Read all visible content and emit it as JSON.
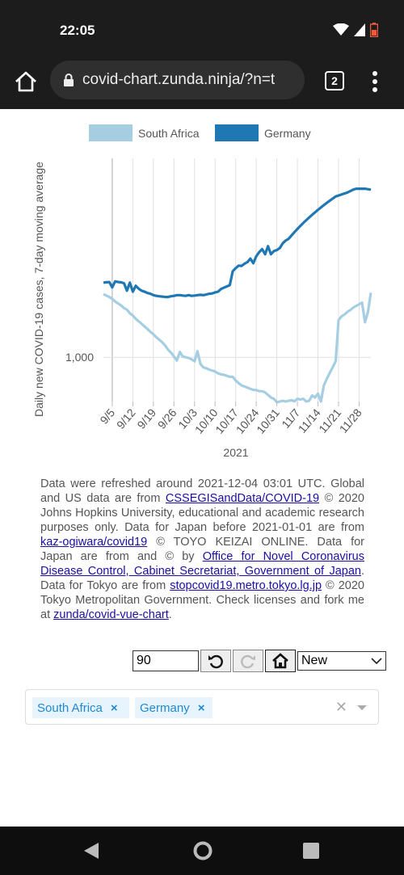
{
  "status_bar": {
    "time": "22:05"
  },
  "browser": {
    "url": "covid-chart.zunda.ninja/?n=t",
    "tab_count": "2"
  },
  "chart_data": {
    "type": "line",
    "ylabel": "Daily new COVID-19 cases, 7-day moving average",
    "xlabel": "2021",
    "y_scale": "log",
    "y_tick_labels": [
      {
        "value": 1000,
        "label": "1,000"
      }
    ],
    "ylim": [
      570,
      12500
    ],
    "x_tick_labels": [
      "9/5",
      "9/12",
      "9/19",
      "9/26",
      "10/3",
      "10/10",
      "10/17",
      "10/24",
      "10/31",
      "11/7",
      "11/14",
      "11/21",
      "11/28"
    ],
    "legend_position": "top",
    "grid": "vertical",
    "series": [
      {
        "name": "South Africa",
        "color": "#a6cee3",
        "x": [
          "9/2",
          "9/3",
          "9/4",
          "9/5",
          "9/6",
          "9/7",
          "9/8",
          "9/9",
          "9/10",
          "9/11",
          "9/12",
          "9/13",
          "9/14",
          "9/15",
          "9/16",
          "9/17",
          "9/18",
          "9/19",
          "9/20",
          "9/21",
          "9/22",
          "9/23",
          "9/24",
          "9/25",
          "9/26",
          "9/27",
          "9/28",
          "9/29",
          "9/30",
          "10/1",
          "10/2",
          "10/3",
          "10/4",
          "10/5",
          "10/6",
          "10/7",
          "10/8",
          "10/9",
          "10/10",
          "10/11",
          "10/12",
          "10/13",
          "10/14",
          "10/15",
          "10/16",
          "10/17",
          "10/18",
          "10/19",
          "10/20",
          "10/21",
          "10/22",
          "10/23",
          "10/24",
          "10/25",
          "10/26",
          "10/27",
          "10/28",
          "10/29",
          "10/30",
          "10/31",
          "11/1",
          "11/2",
          "11/3",
          "11/4",
          "11/5",
          "11/6",
          "11/7",
          "11/8",
          "11/9",
          "11/10",
          "11/11",
          "11/12",
          "11/13",
          "11/14",
          "11/15",
          "11/16",
          "11/17",
          "11/18",
          "11/19",
          "11/20",
          "11/21",
          "11/22",
          "11/23",
          "11/24",
          "11/25",
          "11/26",
          "11/27",
          "11/28",
          "11/29",
          "11/30",
          "12/1",
          "12/2"
        ],
        "y": [
          2230,
          2190,
          2150,
          2100,
          2030,
          1980,
          1930,
          1870,
          1830,
          1750,
          1700,
          1630,
          1580,
          1530,
          1480,
          1430,
          1380,
          1340,
          1290,
          1250,
          1210,
          1160,
          1100,
          1060,
          1010,
          960,
          1070,
          1010,
          1000,
          990,
          975,
          950,
          1080,
          920,
          880,
          870,
          855,
          845,
          835,
          815,
          805,
          800,
          790,
          780,
          780,
          745,
          720,
          700,
          690,
          680,
          670,
          660,
          660,
          650,
          650,
          640,
          620,
          600,
          590,
          565,
          570,
          575,
          570,
          575,
          580,
          572,
          590,
          585,
          590,
          570,
          575,
          615,
          600,
          630,
          570,
          700,
          760,
          820,
          880,
          950,
          1600,
          1680,
          1720,
          1780,
          1820,
          1880,
          1920,
          1960,
          2000,
          1560,
          1780,
          2270
        ]
      },
      {
        "name": "Germany",
        "color": "#1f78b4",
        "x": [
          "9/2",
          "9/3",
          "9/4",
          "9/5",
          "9/6",
          "9/7",
          "9/8",
          "9/9",
          "9/10",
          "9/11",
          "9/12",
          "9/13",
          "9/14",
          "9/15",
          "9/16",
          "9/17",
          "9/18",
          "9/19",
          "9/20",
          "9/21",
          "9/22",
          "9/23",
          "9/24",
          "9/25",
          "9/26",
          "9/27",
          "9/28",
          "9/29",
          "9/30",
          "10/1",
          "10/2",
          "10/3",
          "10/4",
          "10/5",
          "10/6",
          "10/7",
          "10/8",
          "10/9",
          "10/10",
          "10/11",
          "10/12",
          "10/13",
          "10/14",
          "10/15",
          "10/16",
          "10/17",
          "10/18",
          "10/19",
          "10/20",
          "10/21",
          "10/22",
          "10/23",
          "10/24",
          "10/25",
          "10/26",
          "10/27",
          "10/28",
          "10/29",
          "10/30",
          "10/31",
          "11/1",
          "11/2",
          "11/3",
          "11/4",
          "11/5",
          "11/6",
          "11/7",
          "11/8",
          "11/9",
          "11/10",
          "11/11",
          "11/12",
          "11/13",
          "11/14",
          "11/15",
          "11/16",
          "11/17",
          "11/18",
          "11/19",
          "11/20",
          "11/21",
          "11/22",
          "11/23",
          "11/24",
          "11/25",
          "11/26",
          "11/27",
          "11/28",
          "11/29",
          "11/30",
          "12/1",
          "12/2"
        ],
        "y": [
          2580,
          2590,
          2600,
          2430,
          2620,
          2600,
          2590,
          2560,
          2330,
          2580,
          2300,
          2480,
          2390,
          2330,
          2300,
          2260,
          2240,
          2200,
          2180,
          2170,
          2160,
          2150,
          2150,
          2170,
          2180,
          2200,
          2200,
          2190,
          2180,
          2200,
          2180,
          2190,
          2200,
          2210,
          2200,
          2220,
          2240,
          2250,
          2280,
          2300,
          2380,
          2420,
          2460,
          2500,
          2980,
          3100,
          3200,
          3190,
          3280,
          3350,
          3500,
          3300,
          3600,
          3800,
          3950,
          3700,
          4100,
          3700,
          3850,
          3900,
          4000,
          4250,
          4400,
          4500,
          4700,
          4900,
          5100,
          5300,
          5500,
          5700,
          5900,
          6100,
          6300,
          6500,
          6700,
          6900,
          7100,
          7300,
          7500,
          7700,
          7800,
          7900,
          8000,
          8100,
          8250,
          8400,
          8500,
          8500,
          8500,
          8500,
          8450,
          8400
        ]
      }
    ]
  },
  "notice": {
    "t1": "Data were refreshed around 2021-12-04 03:01 UTC. Global and US data are from ",
    "l1": "CSSEGISandData/COVID-19",
    "t2": " © 2020 Johns Hopkins University, educational and academic research purposes only. Data for Japan before 2021-01-01 are from ",
    "l2": "kaz-ogiwara/covid19",
    "t3": " © TOYO KEIZAI ONLINE. Data for Japan are from and © by ",
    "l3": "Office for Novel Coronavirus Disease Control, Cabinet Secretariat, Government of Japan",
    "t4": ". Data for Tokyo are from ",
    "l4": "stopcovid19.metro.tokyo.lg.jp",
    "t5": " © 2020 Tokyo Metropolitan Government. Check licenses and fork me at ",
    "l5": "zunda/covid-vue-chart",
    "t6": "."
  },
  "controls": {
    "days_value": "90",
    "mode_selected": "New"
  },
  "selection": {
    "tags": [
      "South Africa",
      "Germany"
    ],
    "remove_symbol": "×",
    "clear_symbol": "✕"
  },
  "icons": {
    "home": "home-icon",
    "lock": "lock-icon",
    "menu": "kebab-menu-icon",
    "undo": "undo-icon",
    "redo": "redo-icon",
    "reset": "house-icon",
    "back": "back-triangle-icon",
    "home_nav": "circle-home-icon",
    "recents": "square-recents-icon"
  }
}
